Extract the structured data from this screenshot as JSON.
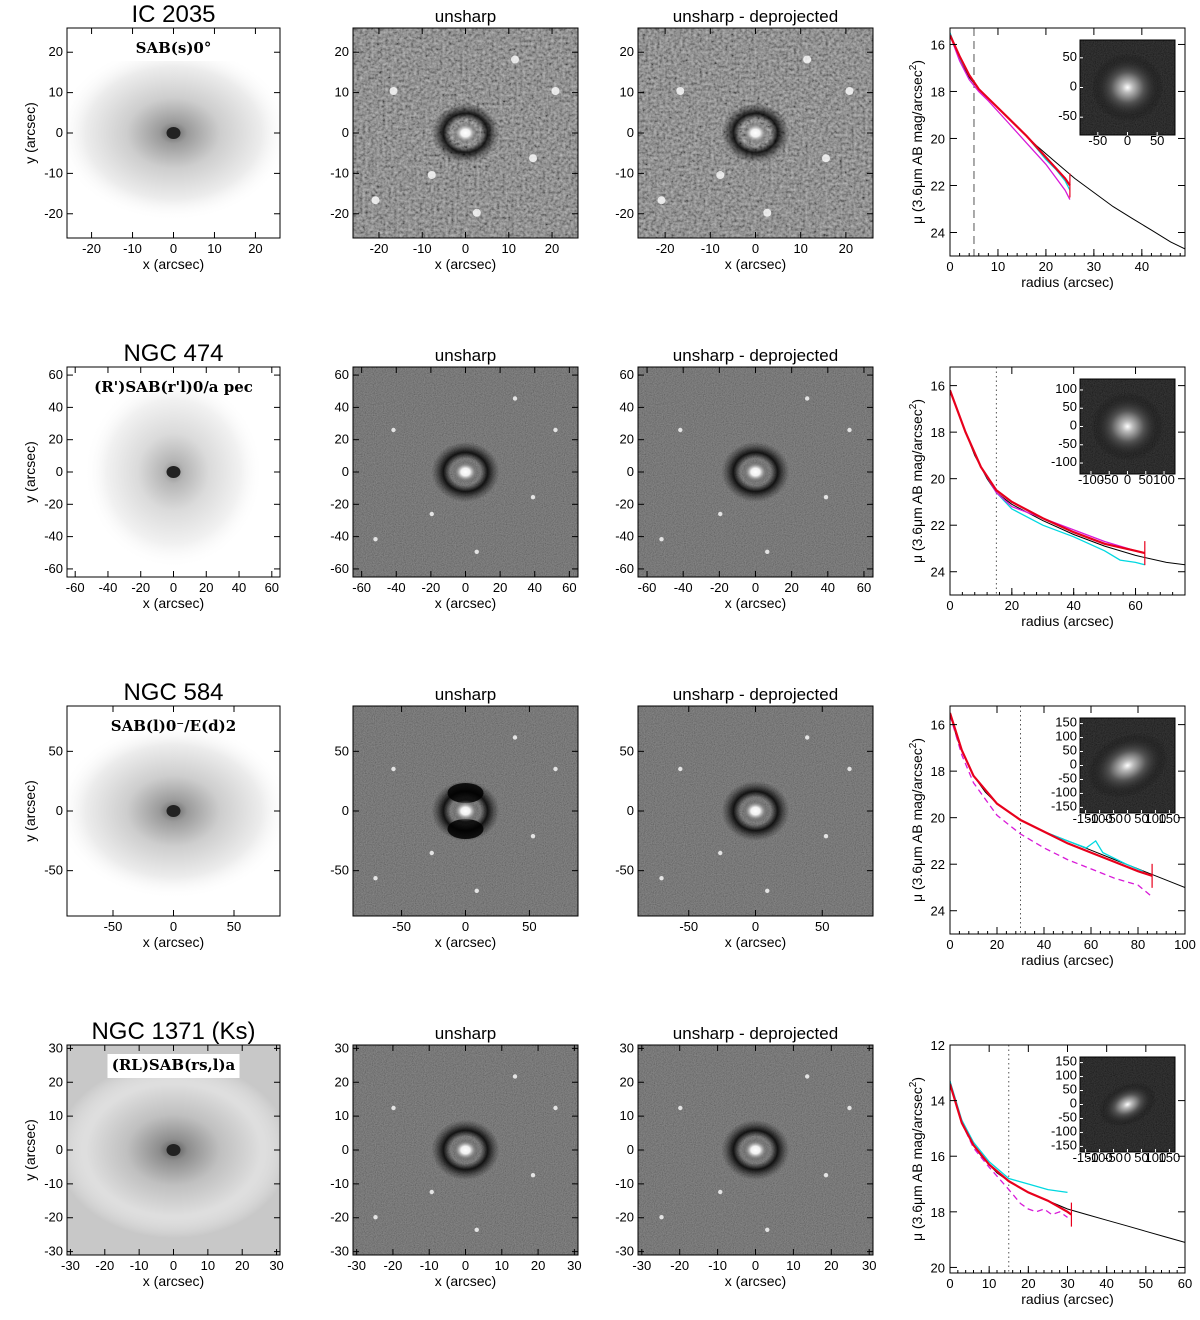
{
  "figure": {
    "rows": [
      {
        "galaxy": "IC 2035",
        "classification": "SAB(s)0°",
        "img_label_box": true,
        "range": 26,
        "ticks": [
          -20,
          -10,
          0,
          10,
          20
        ],
        "panels": {
          "col2_title": "unsharp",
          "col3_title": "unsharp - deprojected"
        },
        "profile": {
          "xlim": [
            0,
            49
          ],
          "ylim": [
            25,
            15.3
          ],
          "xticks": [
            0,
            10,
            20,
            30,
            40
          ],
          "yticks": [
            16,
            18,
            20,
            22,
            24
          ],
          "vline": 5,
          "vline_style": "dashed",
          "black": [
            [
              0,
              15.6
            ],
            [
              2,
              16.6
            ],
            [
              4,
              17.4
            ],
            [
              6,
              17.9
            ],
            [
              8,
              18.3
            ],
            [
              10,
              18.7
            ],
            [
              14,
              19.5
            ],
            [
              18,
              20.3
            ],
            [
              22,
              21.0
            ],
            [
              26,
              21.7
            ],
            [
              30,
              22.3
            ],
            [
              34,
              22.9
            ],
            [
              38,
              23.4
            ],
            [
              42,
              23.9
            ],
            [
              46,
              24.4
            ],
            [
              49,
              24.7
            ]
          ],
          "cyan": [
            [
              0,
              15.5
            ],
            [
              2,
              16.6
            ],
            [
              4,
              17.3
            ],
            [
              6,
              17.9
            ],
            [
              8,
              18.3
            ],
            [
              12,
              19.1
            ],
            [
              16,
              19.9
            ],
            [
              20,
              20.9
            ],
            [
              22,
              21.3
            ],
            [
              24,
              21.8
            ],
            [
              25,
              22.2
            ]
          ],
          "red": [
            [
              0,
              15.6
            ],
            [
              2,
              16.5
            ],
            [
              4,
              17.3
            ],
            [
              6,
              17.9
            ],
            [
              8,
              18.3
            ],
            [
              12,
              19.1
            ],
            [
              16,
              19.9
            ],
            [
              20,
              20.8
            ],
            [
              24,
              21.7
            ],
            [
              25,
              22.0
            ]
          ],
          "magenta": [
            [
              0,
              15.6
            ],
            [
              2,
              16.7
            ],
            [
              4,
              17.5
            ],
            [
              6,
              18.0
            ],
            [
              8,
              18.4
            ],
            [
              12,
              19.3
            ],
            [
              16,
              20.2
            ],
            [
              20,
              21.1
            ],
            [
              24,
              22.2
            ],
            [
              25,
              22.6
            ]
          ],
          "magenta_dashed": [],
          "inset_range": 80,
          "inset_ticks": [
            -50,
            0,
            50
          ]
        }
      },
      {
        "galaxy": "NGC 474",
        "classification": "(R')SAB(r'l)0/a pec",
        "img_label_box": false,
        "range": 65,
        "ticks": [
          -60,
          -40,
          -20,
          0,
          20,
          40,
          60
        ],
        "panels": {
          "col2_title": "unsharp",
          "col3_title": "unsharp - deprojected"
        },
        "profile": {
          "xlim": [
            0,
            76
          ],
          "ylim": [
            25,
            15.2
          ],
          "xticks": [
            0,
            20,
            40,
            60
          ],
          "yticks": [
            16,
            18,
            20,
            22,
            24
          ],
          "vline": 15,
          "vline_style": "dotted",
          "black": [
            [
              0,
              16.2
            ],
            [
              2,
              16.9
            ],
            [
              5,
              18.0
            ],
            [
              8,
              19.0
            ],
            [
              12,
              20.0
            ],
            [
              15,
              20.6
            ],
            [
              20,
              21.1
            ],
            [
              30,
              21.8
            ],
            [
              40,
              22.4
            ],
            [
              50,
              22.9
            ],
            [
              60,
              23.3
            ],
            [
              70,
              23.6
            ],
            [
              76,
              23.7
            ]
          ],
          "cyan": [
            [
              0,
              16.2
            ],
            [
              5,
              18.0
            ],
            [
              10,
              19.5
            ],
            [
              15,
              20.6
            ],
            [
              20,
              21.3
            ],
            [
              30,
              22.0
            ],
            [
              40,
              22.5
            ],
            [
              50,
              23.1
            ],
            [
              55,
              23.5
            ],
            [
              60,
              23.6
            ],
            [
              63,
              23.7
            ]
          ],
          "red": [
            [
              0,
              16.2
            ],
            [
              5,
              18.0
            ],
            [
              10,
              19.5
            ],
            [
              15,
              20.5
            ],
            [
              20,
              21.0
            ],
            [
              30,
              21.7
            ],
            [
              40,
              22.3
            ],
            [
              50,
              22.8
            ],
            [
              60,
              23.1
            ],
            [
              63,
              23.2
            ]
          ],
          "magenta": [
            [
              0,
              16.2
            ],
            [
              5,
              18.0
            ],
            [
              10,
              19.5
            ],
            [
              15,
              20.6
            ],
            [
              20,
              21.2
            ],
            [
              30,
              21.7
            ],
            [
              40,
              22.2
            ],
            [
              50,
              22.7
            ],
            [
              60,
              23.1
            ],
            [
              63,
              23.2
            ]
          ],
          "magenta_dashed": [],
          "inset_range": 130,
          "inset_ticks": [
            -100,
            -50,
            0,
            50,
            100
          ]
        }
      },
      {
        "galaxy": "NGC 584",
        "classification": "SAB(l)0⁻/E(d)2",
        "img_label_box": false,
        "range": 88,
        "ticks": [
          -50,
          0,
          50
        ],
        "panels": {
          "col2_title": "unsharp",
          "col3_title": "unsharp - deprojected"
        },
        "profile": {
          "xlim": [
            0,
            100
          ],
          "ylim": [
            25,
            15.2
          ],
          "xticks": [
            0,
            20,
            40,
            60,
            80,
            100
          ],
          "yticks": [
            16,
            18,
            20,
            22,
            24
          ],
          "vline": 30,
          "vline_style": "dotted",
          "black": [
            [
              0,
              15.5
            ],
            [
              3,
              16.6
            ],
            [
              6,
              17.3
            ],
            [
              10,
              18.2
            ],
            [
              15,
              18.9
            ],
            [
              20,
              19.4
            ],
            [
              30,
              20.1
            ],
            [
              40,
              20.6
            ],
            [
              50,
              21.0
            ],
            [
              60,
              21.4
            ],
            [
              70,
              21.8
            ],
            [
              80,
              22.2
            ],
            [
              90,
              22.6
            ],
            [
              100,
              23.0
            ]
          ],
          "cyan": [
            [
              0,
              15.5
            ],
            [
              5,
              17.1
            ],
            [
              10,
              18.2
            ],
            [
              20,
              19.4
            ],
            [
              30,
              20.1
            ],
            [
              40,
              20.6
            ],
            [
              50,
              21.0
            ],
            [
              58,
              21.3
            ],
            [
              62,
              21.0
            ],
            [
              65,
              21.5
            ],
            [
              75,
              22.0
            ],
            [
              82,
              22.3
            ]
          ],
          "red": [
            [
              0,
              15.5
            ],
            [
              5,
              17.1
            ],
            [
              10,
              18.2
            ],
            [
              20,
              19.4
            ],
            [
              30,
              20.1
            ],
            [
              40,
              20.6
            ],
            [
              50,
              21.1
            ],
            [
              60,
              21.5
            ],
            [
              70,
              21.9
            ],
            [
              80,
              22.3
            ],
            [
              86,
              22.5
            ]
          ],
          "magenta": [],
          "magenta_dashed": [
            [
              0,
              15.6
            ],
            [
              5,
              17.3
            ],
            [
              10,
              18.5
            ],
            [
              20,
              19.9
            ],
            [
              30,
              20.7
            ],
            [
              40,
              21.3
            ],
            [
              50,
              21.8
            ],
            [
              60,
              22.2
            ],
            [
              70,
              22.6
            ],
            [
              80,
              22.9
            ],
            [
              86,
              23.4
            ]
          ],
          "inset_range": 170,
          "inset_ticks": [
            -150,
            -100,
            -50,
            0,
            50,
            100,
            150
          ]
        }
      },
      {
        "galaxy": "NGC 1371",
        "band": "(Ks)",
        "classification": "(RL)SAB(rs,l)a",
        "img_label_box": true,
        "range": 31,
        "ticks": [
          -30,
          -20,
          -10,
          0,
          10,
          20,
          30
        ],
        "panels": {
          "col2_title": "unsharp",
          "col3_title": "unsharp - deprojected"
        },
        "profile": {
          "xlim": [
            0,
            60
          ],
          "ylim": [
            20.2,
            12
          ],
          "xticks": [
            0,
            10,
            20,
            30,
            40,
            50,
            60
          ],
          "yticks": [
            12,
            14,
            16,
            18,
            20
          ],
          "vline": 15,
          "vline_style": "dotted",
          "black": [
            [
              0,
              13.3
            ],
            [
              2,
              14.3
            ],
            [
              4,
              15.1
            ],
            [
              6,
              15.6
            ],
            [
              8,
              16.0
            ],
            [
              10,
              16.3
            ],
            [
              12,
              16.6
            ],
            [
              15,
              16.9
            ],
            [
              20,
              17.3
            ],
            [
              25,
              17.6
            ],
            [
              30,
              17.9
            ],
            [
              35,
              18.1
            ],
            [
              40,
              18.3
            ],
            [
              45,
              18.5
            ],
            [
              50,
              18.7
            ],
            [
              55,
              18.9
            ],
            [
              60,
              19.1
            ]
          ],
          "cyan": [
            [
              0,
              13.3
            ],
            [
              3,
              14.7
            ],
            [
              6,
              15.5
            ],
            [
              10,
              16.2
            ],
            [
              15,
              16.8
            ],
            [
              20,
              17.0
            ],
            [
              25,
              17.2
            ],
            [
              30,
              17.3
            ]
          ],
          "red": [
            [
              0,
              13.4
            ],
            [
              3,
              14.8
            ],
            [
              6,
              15.6
            ],
            [
              10,
              16.3
            ],
            [
              15,
              16.9
            ],
            [
              20,
              17.3
            ],
            [
              25,
              17.6
            ],
            [
              30,
              18.0
            ],
            [
              31,
              18.1
            ]
          ],
          "magenta": [],
          "magenta_dashed": [
            [
              0,
              13.4
            ],
            [
              3,
              14.8
            ],
            [
              6,
              15.7
            ],
            [
              10,
              16.4
            ],
            [
              15,
              17.2
            ],
            [
              18,
              17.7
            ],
            [
              20,
              17.9
            ],
            [
              22,
              18.0
            ],
            [
              24,
              17.9
            ],
            [
              26,
              18.1
            ],
            [
              28,
              18.0
            ],
            [
              30,
              18.2
            ]
          ],
          "inset_range": 170,
          "inset_ticks": [
            -150,
            -100,
            -50,
            0,
            50,
            100,
            150
          ]
        }
      }
    ],
    "axis_labels": {
      "x_image": "x (arcsec)",
      "y_image": "y (arcsec)",
      "x_profile": "radius (arcsec)",
      "y_profile_pre": "μ (3.6μm AB mag/arcsec",
      "y_profile_sup": "2",
      "y_profile_post": ")"
    },
    "colors": {
      "cyan": "#00d8e0",
      "red": "#e8001c",
      "magenta": "#d81ad8",
      "black": "#000000"
    }
  }
}
